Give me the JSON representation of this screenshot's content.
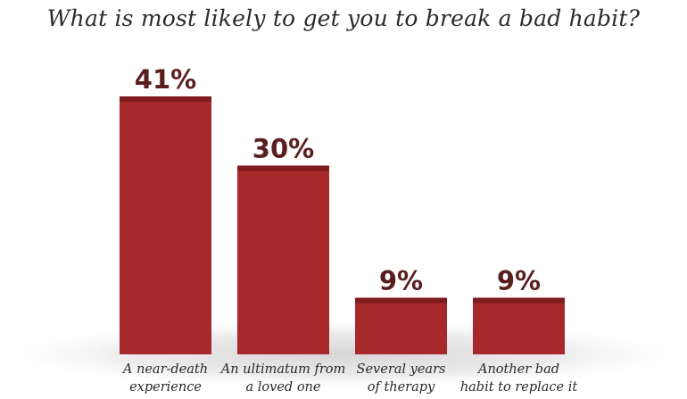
{
  "chart_data": {
    "type": "bar",
    "title": "What is most likely to get you to break a bad habit?",
    "categories": [
      [
        "A near-death",
        "experience"
      ],
      [
        "An ultimatum from",
        "a loved one"
      ],
      [
        "Several years",
        "of therapy"
      ],
      [
        "Another bad",
        "habit to replace it"
      ]
    ],
    "values": [
      41,
      30,
      9,
      9
    ],
    "value_labels": [
      "41%",
      "30%",
      "9%",
      "9%"
    ],
    "ylim": [
      0,
      41
    ],
    "grid": false,
    "colors": {
      "bar": "#a8292c",
      "bar_top": "#7e1c1e",
      "value_text": "#5a1e1e",
      "background_shade": "#e3e3e3"
    }
  }
}
